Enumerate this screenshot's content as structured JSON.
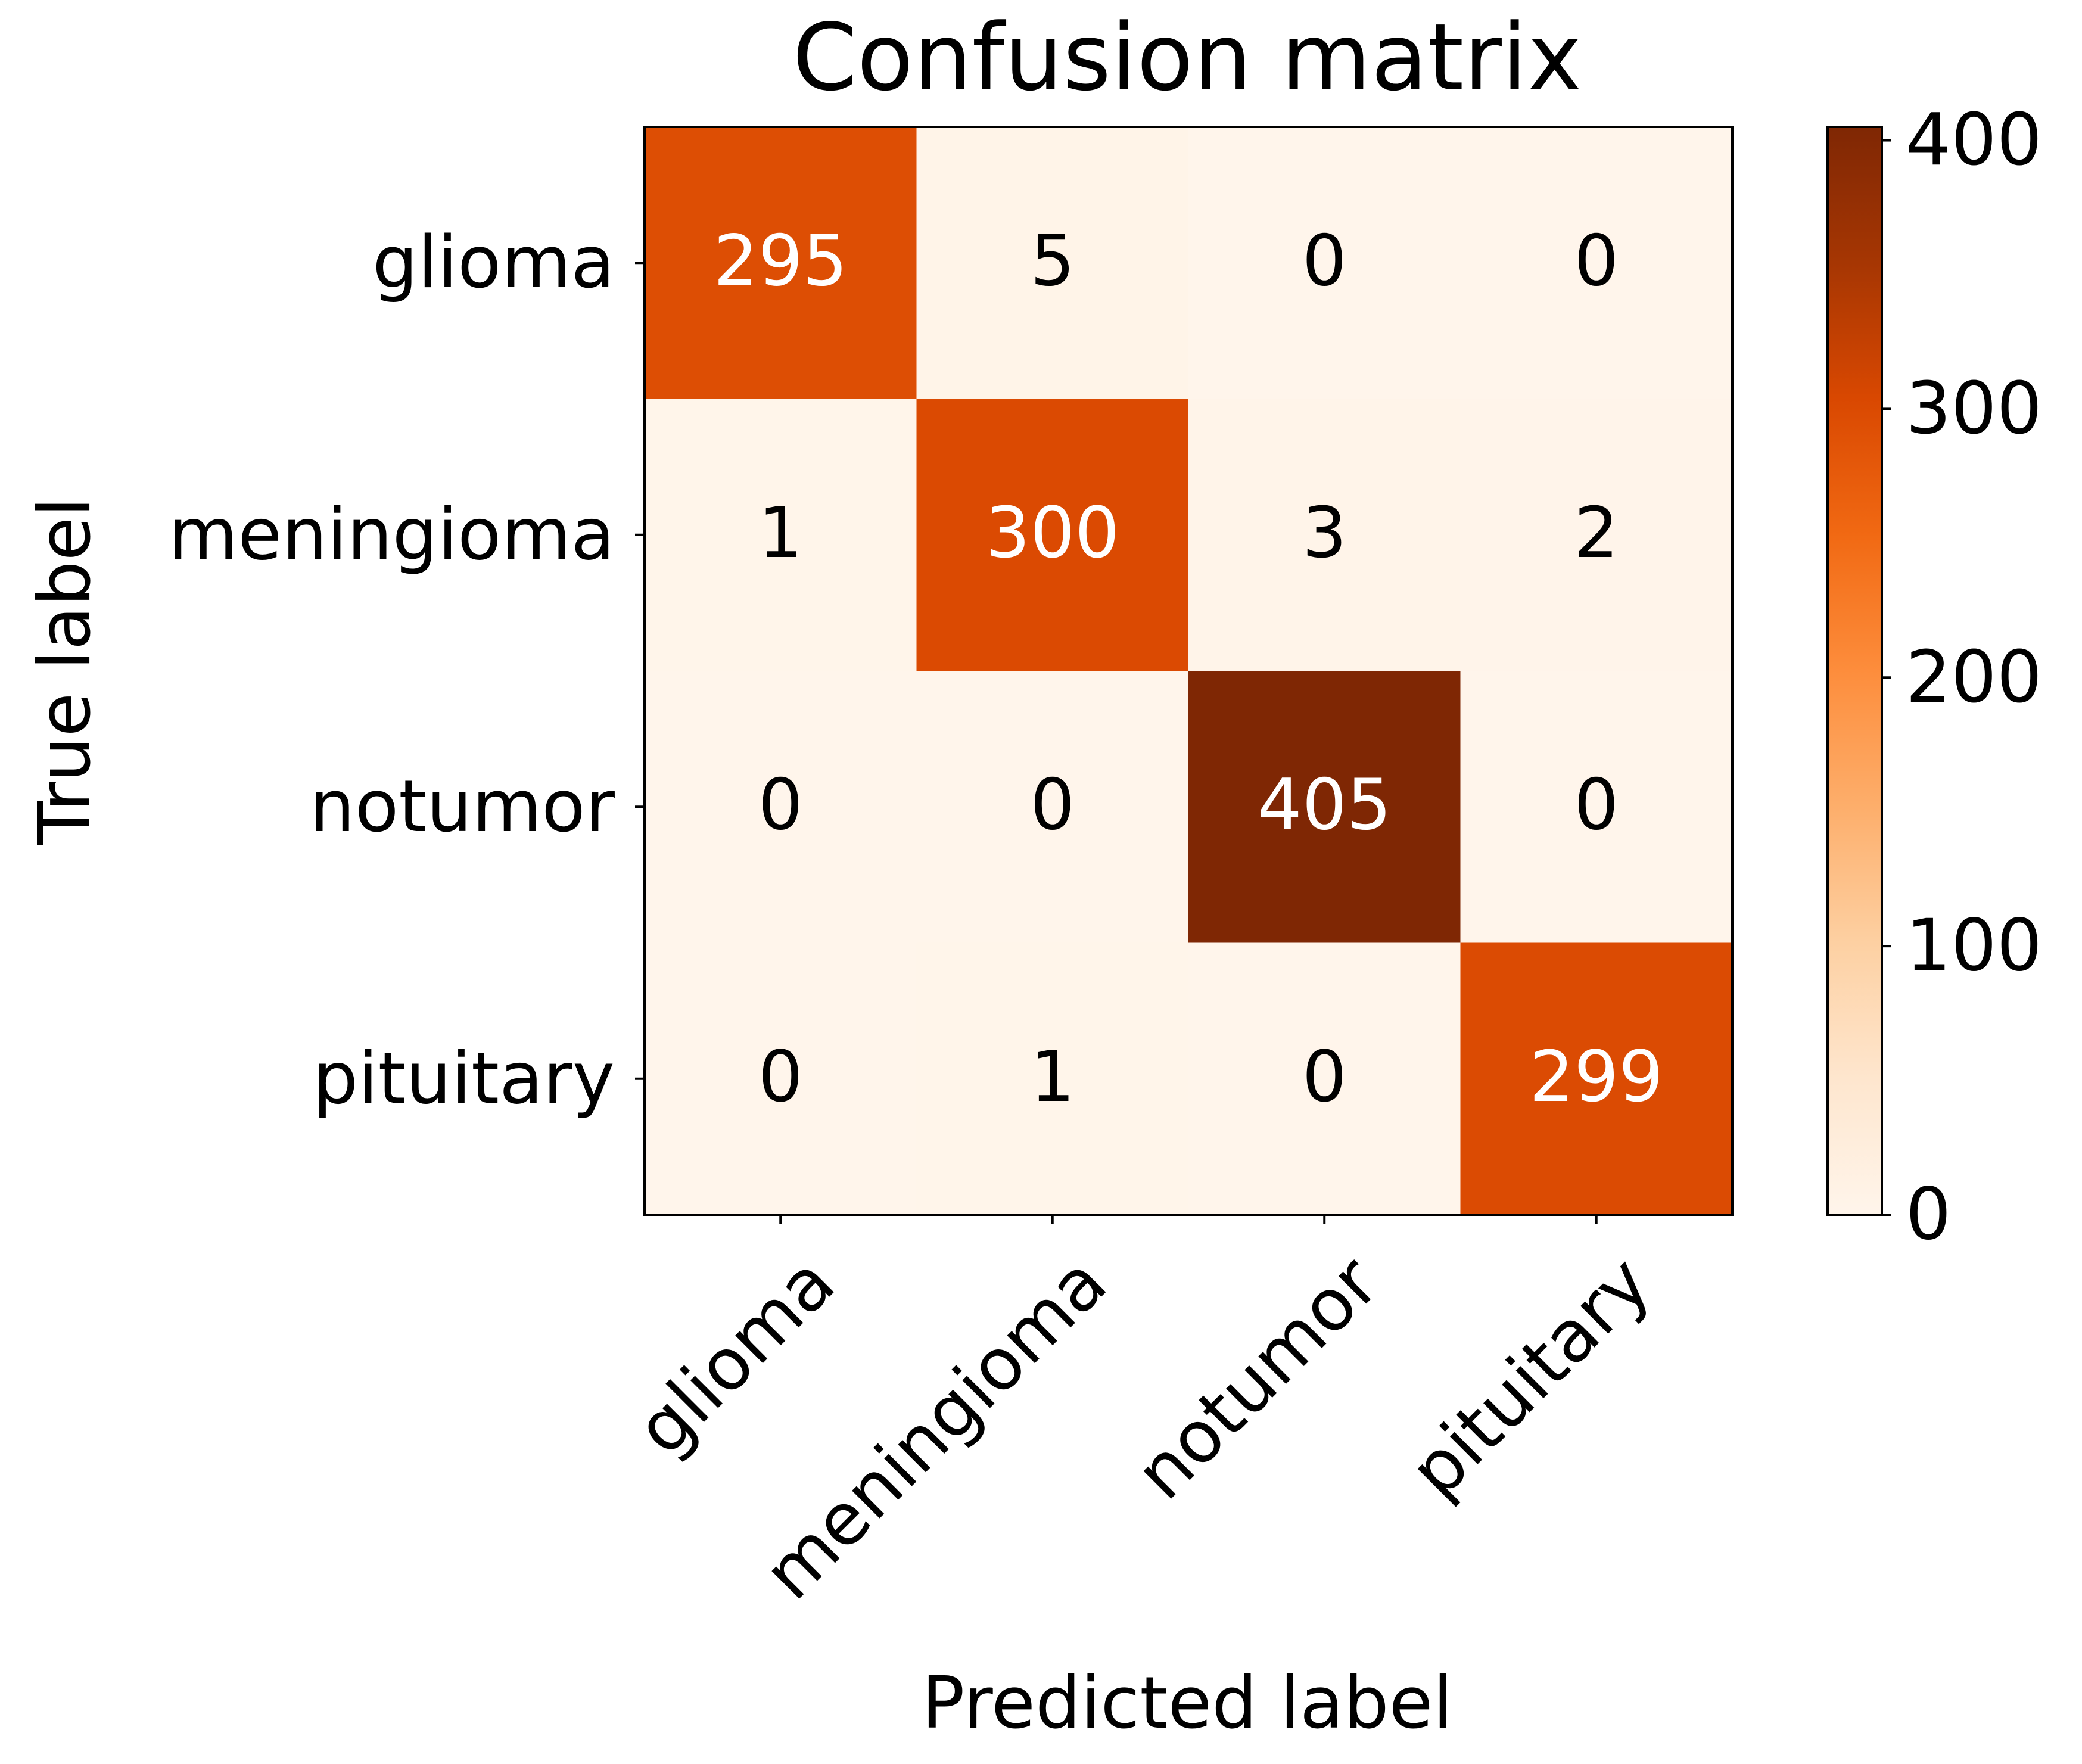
{
  "chart_data": {
    "type": "heatmap",
    "title": "Confusion matrix",
    "xlabel": "Predicted label",
    "ylabel": "True label",
    "x_categories": [
      "glioma",
      "meningioma",
      "notumor",
      "pituitary"
    ],
    "y_categories": [
      "glioma",
      "meningioma",
      "notumor",
      "pituitary"
    ],
    "matrix": [
      [
        295,
        5,
        0,
        0
      ],
      [
        1,
        300,
        3,
        2
      ],
      [
        0,
        0,
        405,
        0
      ],
      [
        0,
        1,
        0,
        299
      ]
    ],
    "colormap": "Oranges",
    "colorbar": {
      "ticks": [
        0,
        100,
        200,
        300,
        400
      ],
      "range": [
        0,
        405
      ]
    },
    "colors": {
      "cell_min": "#fff5eb",
      "cell_max": "#7f2704",
      "text_dark": "#000000",
      "text_light": "#ffffff"
    }
  }
}
